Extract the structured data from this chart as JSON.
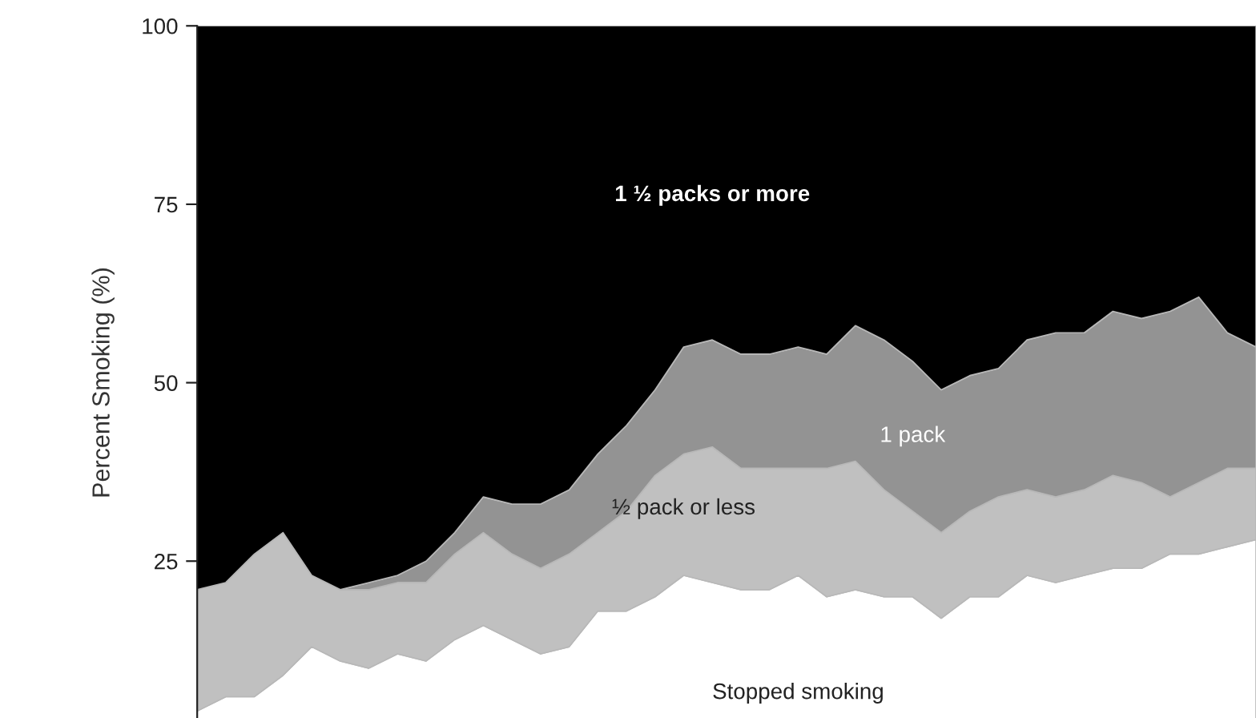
{
  "chart_data": {
    "type": "area",
    "stacked": true,
    "ylabel": "Percent Smoking (%)",
    "categories": [
      null,
      null,
      null,
      null,
      null,
      null,
      null,
      null,
      null,
      null,
      null,
      null,
      null,
      null,
      null,
      null,
      null,
      null,
      null,
      null,
      null,
      null,
      null,
      null,
      null,
      null,
      null,
      null,
      null,
      null,
      null,
      null,
      null,
      null,
      null,
      null,
      null,
      null
    ],
    "series": [
      {
        "name": "Stopped smoking",
        "color": "#ffffff",
        "values": [
          4,
          6,
          6,
          9,
          13,
          11,
          10,
          12,
          11,
          14,
          16,
          14,
          12,
          13,
          18,
          18,
          20,
          23,
          22,
          21,
          21,
          23,
          20,
          21,
          20,
          20,
          17,
          20,
          20,
          23,
          22,
          23,
          24,
          24,
          26,
          26,
          27,
          28
        ]
      },
      {
        "name": "½ pack or less",
        "color": "#c0c0c0",
        "values": [
          17,
          16,
          20,
          20,
          10,
          10,
          11,
          10,
          11,
          12,
          13,
          12,
          12,
          13,
          11,
          14,
          17,
          17,
          19,
          17,
          17,
          15,
          18,
          18,
          15,
          12,
          12,
          12,
          14,
          12,
          12,
          12,
          13,
          12,
          8,
          10,
          11,
          10
        ]
      },
      {
        "name": "1 pack",
        "color": "#939393",
        "values": [
          0,
          0,
          0,
          0,
          0,
          0,
          1,
          1,
          3,
          3,
          5,
          7,
          9,
          9,
          11,
          12,
          12,
          15,
          15,
          16,
          16,
          17,
          16,
          19,
          21,
          21,
          20,
          19,
          18,
          21,
          23,
          22,
          23,
          23,
          26,
          26,
          19,
          17
        ]
      },
      {
        "name": "1 ½ packs or more",
        "color": "#000000",
        "values": [
          79,
          78,
          74,
          71,
          77,
          79,
          78,
          77,
          75,
          71,
          66,
          67,
          67,
          65,
          60,
          56,
          51,
          45,
          44,
          46,
          46,
          45,
          46,
          42,
          44,
          47,
          51,
          49,
          48,
          44,
          43,
          43,
          40,
          41,
          40,
          38,
          43,
          45
        ]
      }
    ],
    "ylim": [
      0,
      100
    ],
    "yticks": [
      25,
      50,
      75,
      100
    ],
    "tick_labels": "y"
  }
}
